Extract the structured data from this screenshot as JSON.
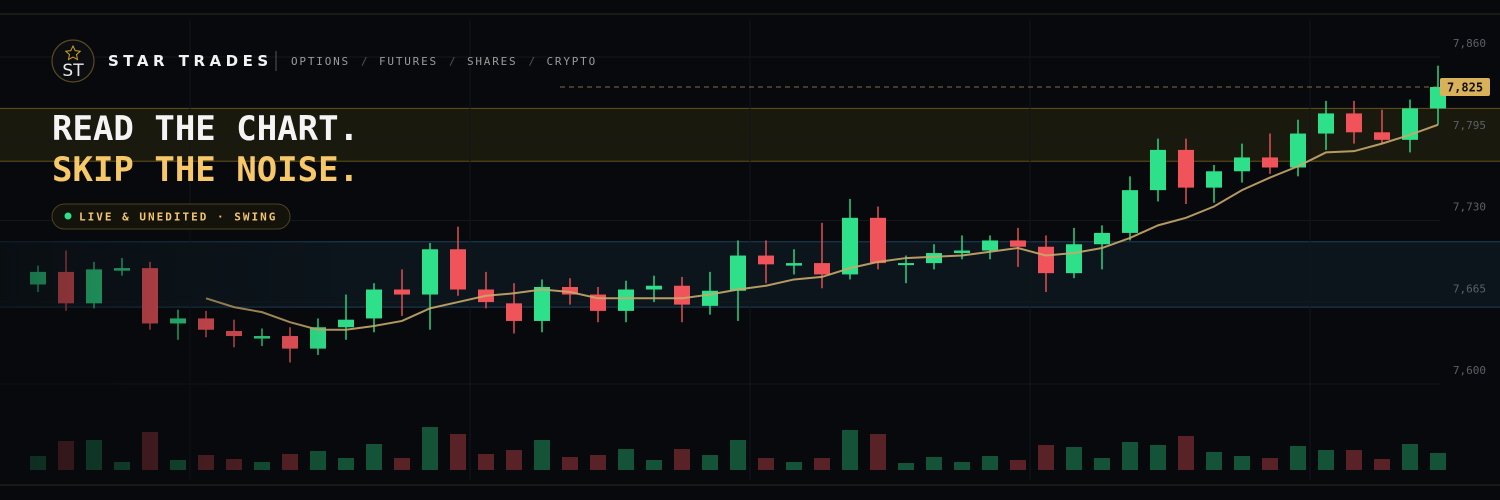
{
  "header": {
    "logo": "ST",
    "brand": "STAR TRADES",
    "nav": [
      "OPTIONS",
      "FUTURES",
      "SHARES",
      "CRYPTO"
    ],
    "nav_separator": "/",
    "headline": [
      "READ THE CHART.",
      "SKIP THE NOISE."
    ],
    "badge": "LIVE & UNEDITED · SWING"
  },
  "chart_data": {
    "type": "candlestick",
    "open": [
      7668,
      7678,
      7653,
      7679,
      7681,
      7637,
      7641,
      7631,
      7625,
      7627,
      7617,
      7634,
      7641,
      7664,
      7660,
      7696,
      7664,
      7653,
      7639,
      7666,
      7660,
      7647,
      7664,
      7667,
      7651,
      7663,
      7691,
      7683,
      7685,
      7676,
      7721,
      7684,
      7685,
      7693,
      7695,
      7703,
      7698,
      7677,
      7700,
      7709,
      7743,
      7775,
      7745,
      7758,
      7769,
      7761,
      7788,
      7804,
      7789,
      7783,
      7808
    ],
    "high": [
      7683,
      7695,
      7686,
      7689,
      7686,
      7648,
      7647,
      7640,
      7633,
      7634,
      7641,
      7660,
      7669,
      7680,
      7701,
      7714,
      7678,
      7669,
      7672,
      7673,
      7666,
      7671,
      7675,
      7674,
      7678,
      7703,
      7703,
      7696,
      7717,
      7736,
      7730,
      7691,
      7700,
      7707,
      7707,
      7713,
      7707,
      7713,
      7715,
      7754,
      7784,
      7784,
      7763,
      7780,
      7788,
      7799,
      7814,
      7814,
      7807,
      7815,
      7842
    ],
    "low": [
      7662,
      7647,
      7649,
      7675,
      7632,
      7624,
      7626,
      7618,
      7619,
      7606,
      7612,
      7624,
      7630,
      7643,
      7632,
      7659,
      7649,
      7629,
      7630,
      7652,
      7638,
      7638,
      7654,
      7638,
      7644,
      7639,
      7669,
      7676,
      7665,
      7672,
      7680,
      7669,
      7680,
      7688,
      7688,
      7682,
      7662,
      7673,
      7680,
      7703,
      7734,
      7732,
      7733,
      7749,
      7756,
      7754,
      7775,
      7780,
      7780,
      7773,
      7795
    ],
    "close": [
      7678,
      7653,
      7680,
      7681,
      7637,
      7641,
      7632,
      7627,
      7627,
      7617,
      7634,
      7640,
      7664,
      7660,
      7696,
      7664,
      7654,
      7639,
      7666,
      7660,
      7647,
      7664,
      7667,
      7652,
      7663,
      7691,
      7684,
      7685,
      7676,
      7721,
      7685,
      7685,
      7693,
      7695,
      7703,
      7698,
      7677,
      7700,
      7709,
      7743,
      7775,
      7745,
      7758,
      7769,
      7761,
      7788,
      7804,
      7789,
      7783,
      7808,
      7825
    ],
    "moving_average": [
      null,
      null,
      null,
      null,
      null,
      null,
      7657,
      7650,
      7646,
      7638,
      7632,
      7632,
      7635,
      7639,
      7649,
      7654,
      7659,
      7661,
      7664,
      7662,
      7657,
      7657,
      7657,
      7657,
      7660,
      7664,
      7667,
      7672,
      7674,
      7681,
      7686,
      7689,
      7690,
      7691,
      7694,
      7697,
      7691,
      7693,
      7697,
      7705,
      7715,
      7721,
      7730,
      7743,
      7753,
      7762,
      7773,
      7774,
      7780,
      7787,
      7795
    ],
    "volume": [
      14,
      29,
      30,
      8,
      38,
      10,
      15,
      11,
      8,
      16,
      19,
      12,
      26,
      12,
      43,
      36,
      16,
      20,
      30,
      13,
      15,
      21,
      10,
      21,
      15,
      30,
      12,
      8,
      12,
      40,
      36,
      7,
      13,
      8,
      14,
      10,
      25,
      23,
      12,
      28,
      25,
      34,
      18,
      14,
      12,
      24,
      20,
      20,
      11,
      26,
      17
    ],
    "y2lim": [
      0,
      50
    ],
    "up_color": "#2ee08a",
    "down_color": "#f0545a",
    "ma_color": "#c8a86a",
    "ylim": [
      7600,
      7860
    ],
    "yticks": [
      {
        "value": 7600,
        "label": "7,600"
      },
      {
        "value": 7665,
        "label": "7,665"
      },
      {
        "value": 7730,
        "label": "7,730"
      },
      {
        "value": 7795,
        "label": "7,795"
      },
      {
        "value": 7860,
        "label": "7,860"
      }
    ],
    "grid": true,
    "zones": [
      {
        "from": 7766,
        "to": 7808,
        "color": "#c9a227"
      },
      {
        "from": 7650,
        "to": 7702,
        "color": "#3a7fb0"
      }
    ],
    "price_tag": {
      "value": 7825,
      "label": "7,825"
    }
  }
}
